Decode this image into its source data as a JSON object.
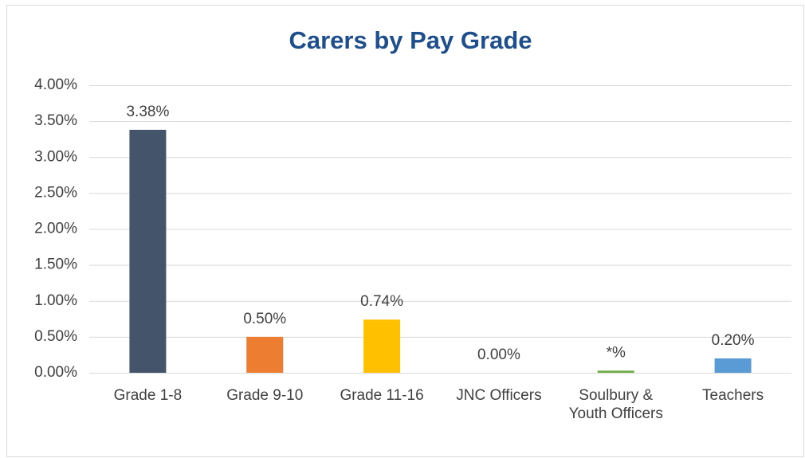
{
  "chart_data": {
    "type": "bar",
    "title": "Carers by Pay Grade",
    "categories": [
      "Grade 1-8",
      "Grade 9-10",
      "Grade 11-16",
      "JNC Officers",
      "Soulbury & Youth Officers",
      "Teachers"
    ],
    "values": [
      3.38,
      0.5,
      0.74,
      0.0,
      0.03,
      0.2
    ],
    "value_labels": [
      "3.38%",
      "0.50%",
      "0.74%",
      "0.00%",
      "*%",
      "0.20%"
    ],
    "colors": [
      "#44546a",
      "#ed7d31",
      "#ffc000",
      "#a5a5a5",
      "#70ad47",
      "#5b9bd5"
    ],
    "ylim": [
      0,
      4
    ],
    "yticks": [
      {
        "value": 0,
        "label": "0.00%"
      },
      {
        "value": 0.5,
        "label": "0.50%"
      },
      {
        "value": 1,
        "label": "1.00%"
      },
      {
        "value": 1.5,
        "label": "1.50%"
      },
      {
        "value": 2,
        "label": "2.00%"
      },
      {
        "value": 2.5,
        "label": "2.50%"
      },
      {
        "value": 3,
        "label": "3.00%"
      },
      {
        "value": 3.5,
        "label": "3.50%"
      },
      {
        "value": 4,
        "label": "4.00%"
      }
    ],
    "grid": true
  }
}
